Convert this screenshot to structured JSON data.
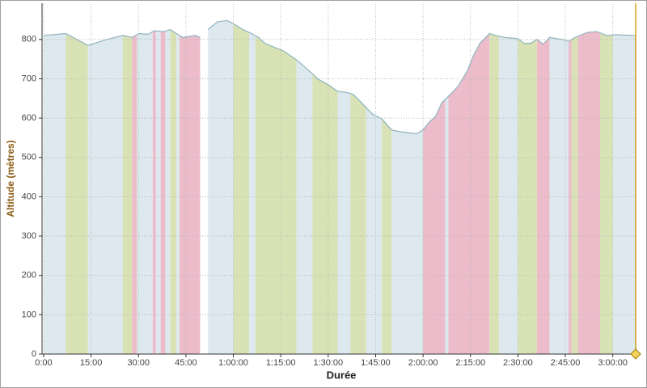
{
  "chart_data": {
    "type": "area",
    "x_label": "Durée",
    "y_label": "Altitude (mètres)",
    "x": [
      0,
      7,
      14,
      16,
      20,
      25,
      28,
      30,
      33,
      35,
      38,
      40,
      42,
      44,
      48,
      49.5,
      50.5,
      52,
      55,
      58,
      60,
      63,
      65,
      68,
      70,
      73,
      76,
      80,
      84,
      87,
      90,
      93,
      96,
      98,
      101,
      104,
      107,
      110,
      113,
      118,
      120,
      122,
      124,
      126,
      128,
      131,
      134,
      136,
      138,
      141,
      143,
      146,
      150,
      152,
      154,
      156,
      158,
      160,
      164,
      166,
      168,
      172,
      175,
      178,
      181,
      187.5
    ],
    "series": [
      {
        "color": "#8fb3bd",
        "values": [
          810,
          815,
          785,
          790,
          800,
          810,
          805,
          815,
          813,
          822,
          820,
          825,
          815,
          805,
          810,
          805,
          null,
          825,
          845,
          848,
          840,
          825,
          818,
          805,
          790,
          780,
          770,
          748,
          720,
          698,
          685,
          668,
          665,
          660,
          635,
          610,
          598,
          570,
          565,
          560,
          570,
          590,
          605,
          640,
          655,
          680,
          720,
          760,
          790,
          815,
          810,
          805,
          802,
          790,
          790,
          800,
          788,
          805,
          800,
          795,
          805,
          818,
          820,
          810,
          812,
          810
        ]
      }
    ],
    "bands": [
      {
        "start": 0,
        "end": 7,
        "color": "#dde9ee"
      },
      {
        "start": 7,
        "end": 14,
        "color": "#d8e2b4"
      },
      {
        "start": 14,
        "end": 25,
        "color": "#dde9ee"
      },
      {
        "start": 25,
        "end": 28,
        "color": "#d8e2b4"
      },
      {
        "start": 28,
        "end": 29.5,
        "color": "#ecbccb"
      },
      {
        "start": 29.5,
        "end": 34.5,
        "color": "#dde9ee"
      },
      {
        "start": 34.5,
        "end": 35.5,
        "color": "#ecbccb"
      },
      {
        "start": 35.5,
        "end": 37,
        "color": "#dde9ee"
      },
      {
        "start": 37,
        "end": 38.5,
        "color": "#ecbccb"
      },
      {
        "start": 38.5,
        "end": 40,
        "color": "#dde9ee"
      },
      {
        "start": 40,
        "end": 42,
        "color": "#d8e2b4"
      },
      {
        "start": 42,
        "end": 43,
        "color": "#dde9ee"
      },
      {
        "start": 43,
        "end": 49.5,
        "color": "#ecbccb"
      },
      {
        "start": 52,
        "end": 60,
        "color": "#dde9ee"
      },
      {
        "start": 60,
        "end": 65,
        "color": "#d8e2b4"
      },
      {
        "start": 65,
        "end": 67,
        "color": "#dde9ee"
      },
      {
        "start": 67,
        "end": 80,
        "color": "#d8e2b4"
      },
      {
        "start": 80,
        "end": 85,
        "color": "#dde9ee"
      },
      {
        "start": 85,
        "end": 93,
        "color": "#d8e2b4"
      },
      {
        "start": 93,
        "end": 97,
        "color": "#dde9ee"
      },
      {
        "start": 97,
        "end": 102,
        "color": "#d8e2b4"
      },
      {
        "start": 102,
        "end": 107,
        "color": "#dde9ee"
      },
      {
        "start": 107,
        "end": 110,
        "color": "#d8e2b4"
      },
      {
        "start": 110,
        "end": 120,
        "color": "#dde9ee"
      },
      {
        "start": 120,
        "end": 127,
        "color": "#ecbccb"
      },
      {
        "start": 127,
        "end": 128,
        "color": "#dde9ee"
      },
      {
        "start": 128,
        "end": 141,
        "color": "#ecbccb"
      },
      {
        "start": 141,
        "end": 144,
        "color": "#d8e2b4"
      },
      {
        "start": 144,
        "end": 150,
        "color": "#dde9ee"
      },
      {
        "start": 150,
        "end": 156,
        "color": "#d8e2b4"
      },
      {
        "start": 156,
        "end": 160,
        "color": "#ecbccb"
      },
      {
        "start": 160,
        "end": 166,
        "color": "#dde9ee"
      },
      {
        "start": 166,
        "end": 167,
        "color": "#ecbccb"
      },
      {
        "start": 167,
        "end": 169,
        "color": "#d8e2b4"
      },
      {
        "start": 169,
        "end": 176,
        "color": "#ecbccb"
      },
      {
        "start": 176,
        "end": 180,
        "color": "#d8e2b4"
      },
      {
        "start": 180,
        "end": 187.5,
        "color": "#dde9ee"
      }
    ],
    "xlim": [
      -0.5,
      187.5
    ],
    "ylim": [
      0,
      890
    ],
    "xticks": [
      {
        "value": 0,
        "label": "0:00"
      },
      {
        "value": 15,
        "label": "15:00"
      },
      {
        "value": 30,
        "label": "30:00"
      },
      {
        "value": 45,
        "label": "45:00"
      },
      {
        "value": 60,
        "label": "1:00:00"
      },
      {
        "value": 75,
        "label": "1:15:00"
      },
      {
        "value": 90,
        "label": "1:30:00"
      },
      {
        "value": 105,
        "label": "1:45:00"
      },
      {
        "value": 120,
        "label": "2:00:00"
      },
      {
        "value": 135,
        "label": "2:15:00"
      },
      {
        "value": 150,
        "label": "2:30:00"
      },
      {
        "value": 165,
        "label": "2:45:00"
      },
      {
        "value": 180,
        "label": "3:00:00"
      }
    ],
    "yticks": [
      0,
      100,
      200,
      300,
      400,
      500,
      600,
      700,
      800
    ],
    "grid": true
  }
}
